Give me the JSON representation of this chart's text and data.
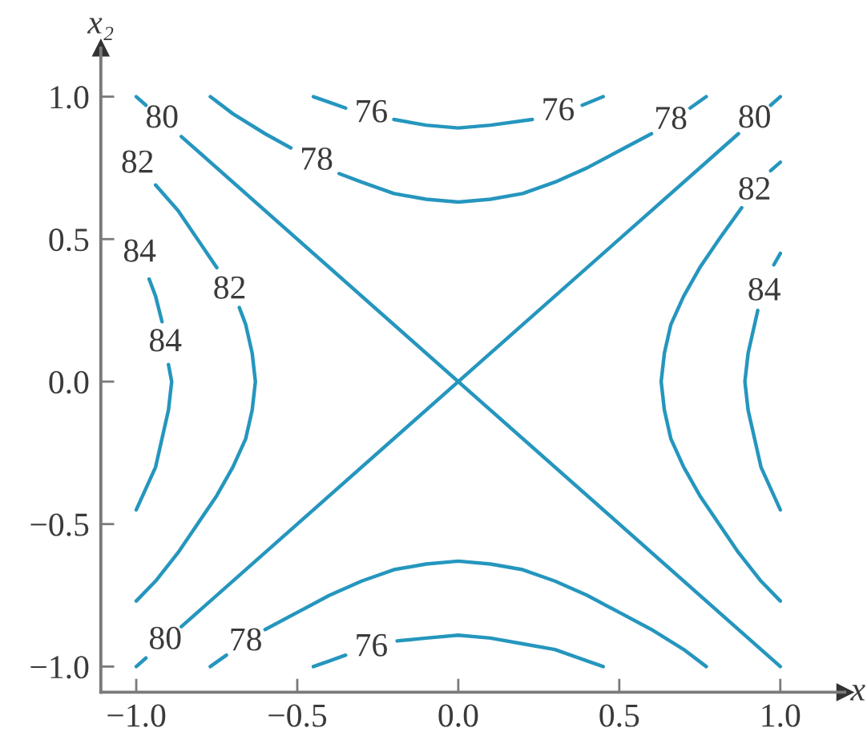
{
  "chart_data": {
    "type": "line",
    "xlabel": "x",
    "ylabel": "x₂",
    "xlim": [
      -1.11,
      1.2
    ],
    "ylim": [
      -1.09,
      1.17
    ],
    "xticks": [
      {
        "value": -1.0,
        "label": "−1.0"
      },
      {
        "value": -0.5,
        "label": "−0.5"
      },
      {
        "value": 0.0,
        "label": "0.0"
      },
      {
        "value": 0.5,
        "label": "0.5"
      },
      {
        "value": 1.0,
        "label": "1.0"
      }
    ],
    "yticks": [
      {
        "value": -1.0,
        "label": "−1.0"
      },
      {
        "value": -0.5,
        "label": "−0.5"
      },
      {
        "value": 0.0,
        "label": "0.0"
      },
      {
        "value": 0.5,
        "label": "0.5"
      },
      {
        "value": 1.0,
        "label": "1.0"
      }
    ],
    "series": [
      {
        "name": "80",
        "color": "#2596be",
        "x": [
          -1.0,
          -0.97,
          -0.92,
          -0.86,
          1.0
        ],
        "values": [
          1.0,
          0.97,
          null,
          0.86,
          -1.0
        ]
      },
      {
        "name": "80",
        "color": "#2596be",
        "x": [
          -1.0,
          -0.97,
          -0.91,
          -0.86,
          0.87,
          0.92,
          0.97,
          1.0
        ],
        "values": [
          -1.0,
          -0.97,
          null,
          -0.86,
          0.87,
          null,
          0.97,
          1.0
        ]
      },
      {
        "name": "76",
        "color": "#2596be",
        "x": [
          -0.45,
          -0.4,
          -0.35,
          -0.27,
          -0.2,
          -0.1,
          0.0,
          0.1,
          0.23,
          0.31,
          0.385,
          0.45
        ],
        "values": [
          1.0,
          0.98,
          0.96,
          null,
          0.92,
          0.9,
          0.89,
          0.9,
          0.92,
          null,
          0.97,
          1.0
        ]
      },
      {
        "name": "76",
        "color": "#2596be",
        "x": [
          -0.45,
          -0.4,
          -0.35,
          -0.27,
          -0.19,
          -0.1,
          0.0,
          0.1,
          0.2,
          0.3,
          0.4,
          0.45
        ],
        "values": [
          -1.0,
          -0.98,
          -0.96,
          null,
          -0.91,
          -0.9,
          -0.89,
          -0.9,
          -0.92,
          -0.94,
          -0.98,
          -1.0
        ]
      },
      {
        "name": "78",
        "color": "#2596be",
        "x": [
          -0.77,
          -0.7,
          -0.6,
          -0.52,
          -0.44,
          -0.37,
          -0.3,
          -0.2,
          -0.1,
          0.0,
          0.1,
          0.2,
          0.3,
          0.4,
          0.5,
          0.6,
          0.66,
          0.72,
          0.77
        ],
        "values": [
          1.0,
          0.94,
          0.87,
          0.82,
          null,
          0.73,
          0.7,
          0.66,
          0.64,
          0.63,
          0.64,
          0.66,
          0.7,
          0.75,
          0.81,
          0.87,
          null,
          0.96,
          1.0
        ]
      },
      {
        "name": "78",
        "color": "#2596be",
        "x": [
          -0.77,
          -0.72,
          -0.66,
          -0.6,
          -0.5,
          -0.4,
          -0.3,
          -0.2,
          -0.1,
          0.0,
          0.1,
          0.2,
          0.3,
          0.4,
          0.5,
          0.6,
          0.7,
          0.77
        ],
        "values": [
          -1.0,
          -0.96,
          null,
          -0.87,
          -0.81,
          -0.75,
          -0.7,
          -0.66,
          -0.64,
          -0.63,
          -0.64,
          -0.66,
          -0.7,
          -0.75,
          -0.81,
          -0.87,
          -0.94,
          -1.0
        ]
      },
      {
        "name": "82",
        "color": "#2596be",
        "x": [
          -0.94,
          -0.87,
          -0.81,
          -0.75,
          -0.71,
          -0.68,
          -0.66,
          -0.64,
          -0.63,
          -0.64,
          -0.66,
          -0.7,
          -0.75,
          -0.81,
          -0.87,
          -0.94,
          -1.0
        ],
        "values": [
          0.69,
          0.6,
          0.5,
          0.4,
          null,
          0.26,
          0.2,
          0.1,
          0.0,
          -0.1,
          -0.2,
          -0.3,
          -0.4,
          -0.5,
          -0.6,
          -0.7,
          -0.77
        ]
      },
      {
        "name": "82",
        "color": "#2596be",
        "x": [
          1.0,
          0.94,
          0.87,
          0.81,
          0.75,
          0.7,
          0.66,
          0.64,
          0.63,
          0.64,
          0.66,
          0.7,
          0.75,
          0.81,
          0.88,
          0.92,
          0.97,
          1.0
        ],
        "values": [
          -0.77,
          -0.7,
          -0.6,
          -0.5,
          -0.4,
          -0.3,
          -0.2,
          -0.1,
          0.0,
          0.1,
          0.2,
          0.3,
          0.4,
          0.5,
          0.61,
          null,
          0.74,
          0.77
        ]
      },
      {
        "name": "84",
        "color": "#2596be",
        "x": [
          -0.96,
          -0.94,
          -0.92,
          -0.91,
          -0.9,
          -0.89,
          -0.9,
          -0.92,
          -0.94,
          -0.98,
          -1.0
        ],
        "values": [
          0.36,
          0.3,
          0.21,
          null,
          0.06,
          0.0,
          -0.1,
          -0.2,
          -0.3,
          -0.4,
          -0.45
        ]
      },
      {
        "name": "84",
        "color": "#2596be",
        "x": [
          1.0,
          0.98,
          0.94,
          0.92,
          0.9,
          0.89,
          0.9,
          0.92,
          0.93,
          0.95,
          0.98,
          1.0
        ],
        "values": [
          -0.45,
          -0.4,
          -0.3,
          -0.2,
          -0.1,
          0.0,
          0.1,
          0.2,
          0.25,
          null,
          0.41,
          0.45
        ]
      }
    ],
    "annotations": [
      {
        "text": "82",
        "x": -0.94,
        "y": 0.69
      },
      {
        "text": "84",
        "x": -0.96,
        "y": 0.36
      }
    ]
  }
}
